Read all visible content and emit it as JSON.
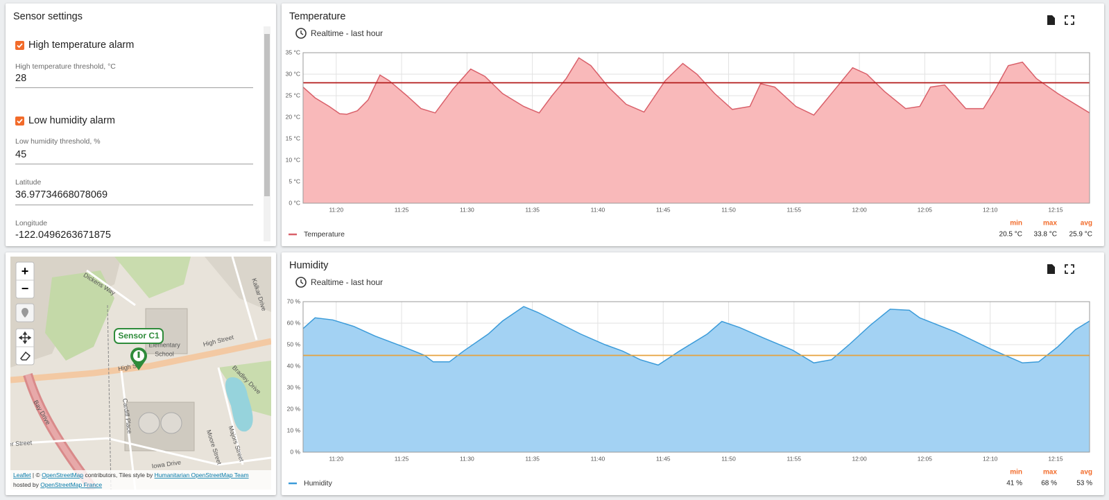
{
  "settings": {
    "title": "Sensor settings",
    "items": [
      {
        "checkbox": "High temperature alarm",
        "label": "High temperature threshold, °C",
        "value": 28
      },
      {
        "checkbox": "Low humidity alarm",
        "label": "Low humidity threshold, %",
        "value": 45
      },
      {
        "label": "Latitude",
        "value": 36.97734668078069
      },
      {
        "label": "Longitude",
        "value": -122.0496263671875
      }
    ]
  },
  "map": {
    "zoom_in": "+",
    "zoom_out": "−",
    "marker": "Sensor C1",
    "streets": [
      "Dickens Way",
      "High Street",
      "Kalkar Drive",
      "Bradley Drive",
      "Cardiff Place",
      "Majors Street",
      "Moore Street",
      "Iowa Drive",
      "Bay Drive",
      "er Street",
      "Elementary",
      "School",
      "High St"
    ],
    "attribution": [
      "Leaflet",
      " | © ",
      "OpenStreetMap",
      " contributors, Tiles style by ",
      "Humanitarian OpenStreetMap Team",
      "hosted by ",
      "OpenStreetMap France"
    ]
  },
  "chart_data": [
    {
      "type": "area",
      "title": "Temperature",
      "subtitle": "Realtime - last hour",
      "x": [
        "11:17:28",
        "11:18:23",
        "11:19:28",
        "11:20:16",
        "11:20:49",
        "11:21:37",
        "11:22:26",
        "11:23:21",
        "11:24:03",
        "11:25:24",
        "11:26:29",
        "11:27:34",
        "11:28:55",
        "11:30:17",
        "11:31:22",
        "11:32:43",
        "11:34:20",
        "11:35:31",
        "11:36:30",
        "11:37:35",
        "11:38:33",
        "11:39:28",
        "11:40:49",
        "11:42:10",
        "11:43:32",
        "11:45:09",
        "11:46:30",
        "11:47:35",
        "11:48:56",
        "11:50:17",
        "11:51:38",
        "11:52:27",
        "11:53:32",
        "11:55:09",
        "11:56:31",
        "11:57:52",
        "11:59:29",
        "12:00:34",
        "12:01:55",
        "12:03:32",
        "12:04:37",
        "12:05:26",
        "12:06:31",
        "12:08:08",
        "12:09:29",
        "12:10:18",
        "12:11:23",
        "12:12:28",
        "12:13:32",
        "12:15:10",
        "12:17:36"
      ],
      "series": [
        {
          "name": "Temperature",
          "color": "#d9606a",
          "fill": "#f9b9ba",
          "values": [
            27,
            24.5,
            22.5,
            20.8,
            20.7,
            21.5,
            24,
            29.8,
            28.5,
            25,
            22,
            21,
            26.5,
            31.2,
            29.5,
            25.5,
            22.5,
            21,
            25,
            29,
            33.8,
            32,
            27,
            23,
            21.2,
            28.5,
            32.5,
            30,
            25.5,
            21.8,
            22.5,
            27.8,
            27,
            22.5,
            20.5,
            25.5,
            31.5,
            30,
            26,
            22,
            22.5,
            27,
            27.5,
            22,
            22,
            26,
            32,
            32.8,
            29,
            25.5,
            21
          ]
        }
      ],
      "xlim": [
        "11:17:28",
        "12:17:36"
      ],
      "xticks": [
        "11:20",
        "11:25",
        "11:30",
        "11:35",
        "11:40",
        "11:45",
        "11:50",
        "11:55",
        "12:00",
        "12:05",
        "12:10",
        "12:15"
      ],
      "ylim": [
        0,
        35
      ],
      "yticks": [
        {
          "value": 0,
          "label": "0 °C"
        },
        {
          "value": 5,
          "label": "5 °C"
        },
        {
          "value": 10,
          "label": "10 °C"
        },
        {
          "value": 15,
          "label": "15 °C"
        },
        {
          "value": 20,
          "label": "20 °C"
        },
        {
          "value": 25,
          "label": "25 °C"
        },
        {
          "value": 30,
          "label": "30 °C"
        },
        {
          "value": 35,
          "label": "35 °C"
        }
      ],
      "grid": true,
      "threshold_color": "#b31b1b",
      "stats": {
        "labels": [
          "min",
          "max",
          "avg"
        ],
        "values": [
          "20.5 °C",
          "33.8 °C",
          "25.9 °C"
        ]
      }
    },
    {
      "type": "area",
      "title": "Humidity",
      "subtitle": "Realtime - last hour",
      "x": [
        "11:17:28",
        "11:18:23",
        "11:19:44",
        "11:21:21",
        "11:22:58",
        "11:25:08",
        "11:26:46",
        "11:27:25",
        "11:28:39",
        "11:29:44",
        "11:31:38",
        "11:32:43",
        "11:34:20",
        "11:35:25",
        "11:37:02",
        "11:38:40",
        "11:40:33",
        "11:41:54",
        "11:43:15",
        "11:44:37",
        "11:46:14",
        "11:48:23",
        "11:49:29",
        "11:50:50",
        "11:52:43",
        "11:54:53",
        "11:56:31",
        "11:57:52",
        "11:59:13",
        "12:00:50",
        "12:02:21",
        "12:03:49",
        "12:04:37",
        "12:07:19",
        "12:10:02",
        "12:12:28",
        "12:13:42",
        "12:15:10",
        "12:16:31",
        "12:17:36"
      ],
      "series": [
        {
          "name": "Humidity",
          "color": "#3b9bd9",
          "fill": "#a3d2f3",
          "values": [
            57.5,
            62.5,
            61.5,
            58.5,
            54,
            49,
            45,
            42,
            42,
            47,
            55,
            61,
            67.7,
            65,
            60,
            55,
            50,
            47,
            43,
            40.5,
            47,
            55,
            60.8,
            58,
            53,
            47.5,
            41.5,
            43,
            50,
            59,
            66.5,
            66,
            62.5,
            56,
            48,
            41.5,
            42,
            49,
            57,
            61
          ]
        }
      ],
      "xlim": [
        "11:17:28",
        "12:17:36"
      ],
      "xticks": [
        "11:20",
        "11:25",
        "11:30",
        "11:35",
        "11:40",
        "11:45",
        "11:50",
        "11:55",
        "12:00",
        "12:05",
        "12:10",
        "12:15"
      ],
      "ylim": [
        0,
        70
      ],
      "yticks": [
        {
          "value": 0,
          "label": "0 %"
        },
        {
          "value": 10,
          "label": "10 %"
        },
        {
          "value": 20,
          "label": "20 %"
        },
        {
          "value": 30,
          "label": "30 %"
        },
        {
          "value": 40,
          "label": "40 %"
        },
        {
          "value": 50,
          "label": "50 %"
        },
        {
          "value": 60,
          "label": "60 %"
        },
        {
          "value": 70,
          "label": "70 %"
        }
      ],
      "grid": true,
      "threshold_color": "#e6a23c",
      "stats": {
        "labels": [
          "min",
          "max",
          "avg"
        ],
        "values": [
          "41 %",
          "68 %",
          "53 %"
        ]
      }
    }
  ]
}
